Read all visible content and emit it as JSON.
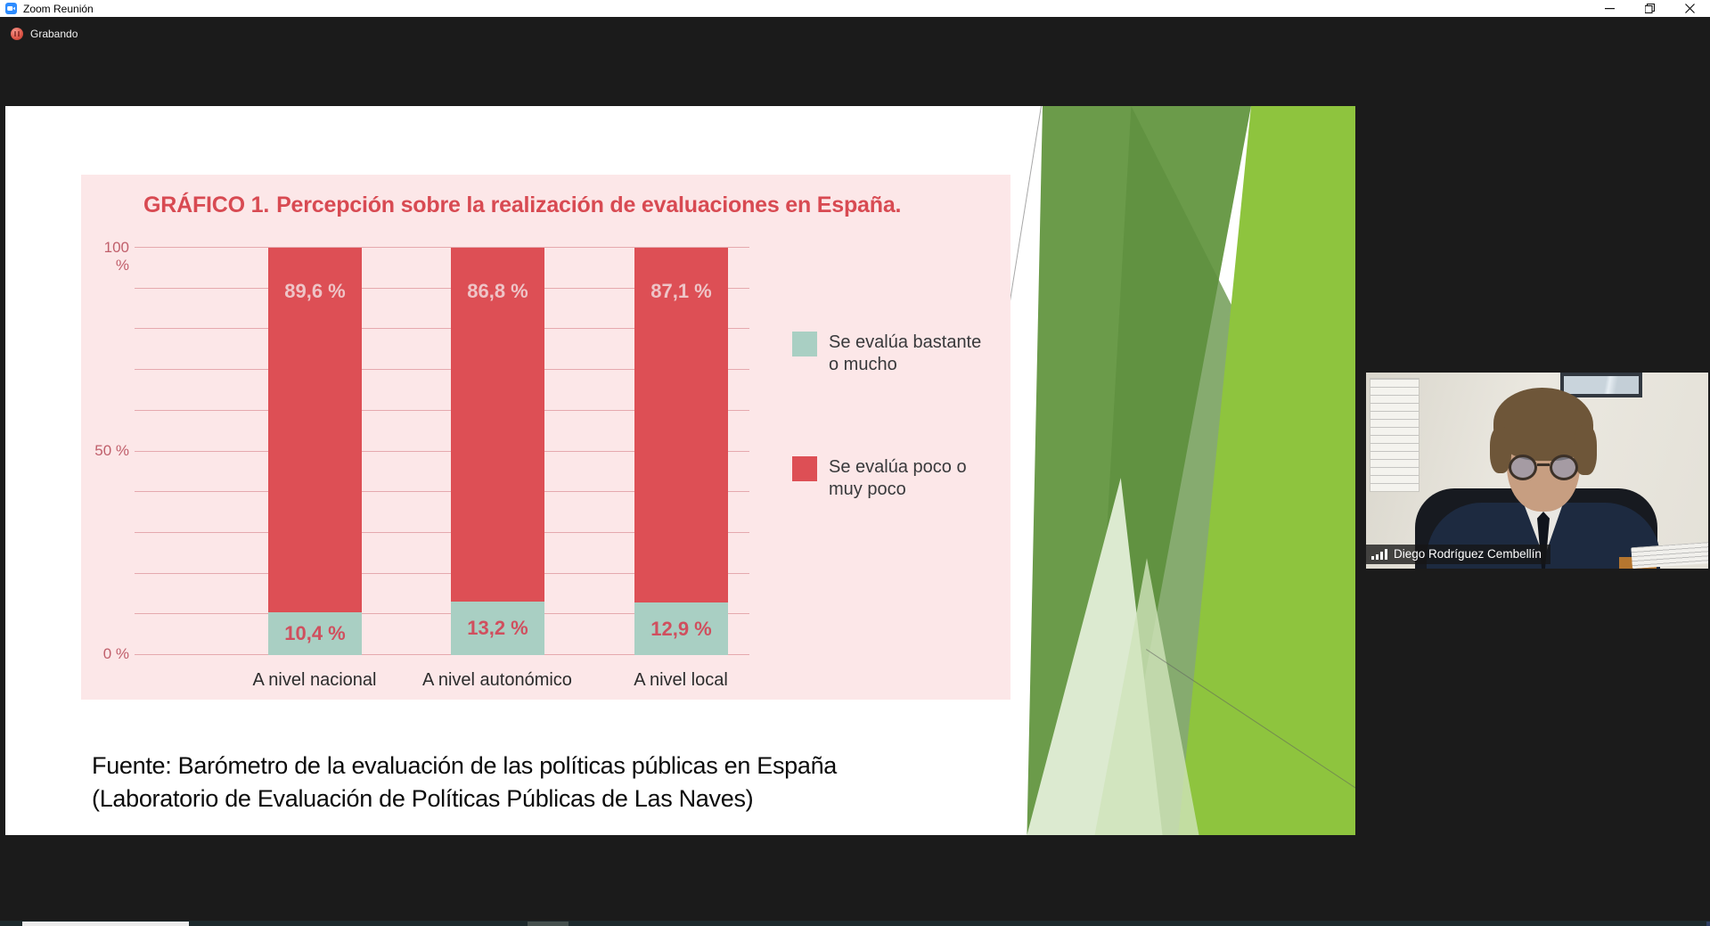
{
  "window": {
    "title": "Zoom Reunión",
    "controls": {
      "minimize": "minimize",
      "restore": "restore",
      "close": "close"
    }
  },
  "recording": {
    "label": "Grabando"
  },
  "chart_data": {
    "type": "bar",
    "stacked": true,
    "title": "GRÁFICO 1. Percepción sobre la realización de evaluaciones en España.",
    "title_bold": "GRÁFICO 1.",
    "title_rest": "Percepción sobre la realización de evaluaciones en España.",
    "categories": [
      "A nivel nacional",
      "A nivel autonómico",
      "A nivel local"
    ],
    "series": [
      {
        "name": "Se evalúa bastante o mucho",
        "color": "#a9cfc3",
        "values": [
          10.4,
          13.2,
          12.9
        ],
        "value_labels": [
          "10,4 %",
          "13,2 %",
          "12,9 %"
        ]
      },
      {
        "name": "Se evalúa poco o muy poco",
        "color": "#dd4f55",
        "values": [
          89.6,
          86.8,
          87.1
        ],
        "value_labels": [
          "89,6 %",
          "86,8 %",
          "87,1 %"
        ]
      }
    ],
    "y_ticks": [
      {
        "label": "100 %",
        "value": 100
      },
      {
        "label": "50 %",
        "value": 50
      },
      {
        "label": "0 %",
        "value": 0
      }
    ],
    "ylim": [
      0,
      100
    ],
    "grid_interval": 10,
    "grid": true,
    "legend_position": "right",
    "legend": [
      {
        "color": "#a9cfc3",
        "line1": "Se evalúa bastante",
        "line2": "o mucho"
      },
      {
        "color": "#dd4f55",
        "line1": "Se evalúa poco o",
        "line2": "muy poco"
      }
    ]
  },
  "slide": {
    "source_line1": "Fuente: Barómetro de la evaluación de las políticas públicas en España",
    "source_line2": "(Laboratorio de Evaluación de Políticas Públicas de Las Naves)"
  },
  "participant": {
    "name": "Diego Rodríguez Cembellín"
  },
  "colors": {
    "titlebar_bg": "#ffffff",
    "app_bg": "#1b1b1b",
    "zoom_blue": "#2d8cff",
    "chart_panel_bg": "#fce7e8",
    "chart_title_red": "#d84a52",
    "bar_red": "#dd4f55",
    "bar_teal": "#a9cfc3",
    "gridline_pink": "#e5a9ae",
    "slide_green_dark": "#6b9b4a",
    "slide_green_lime": "#8ec43e",
    "slide_green_pale": "#dcead0"
  }
}
